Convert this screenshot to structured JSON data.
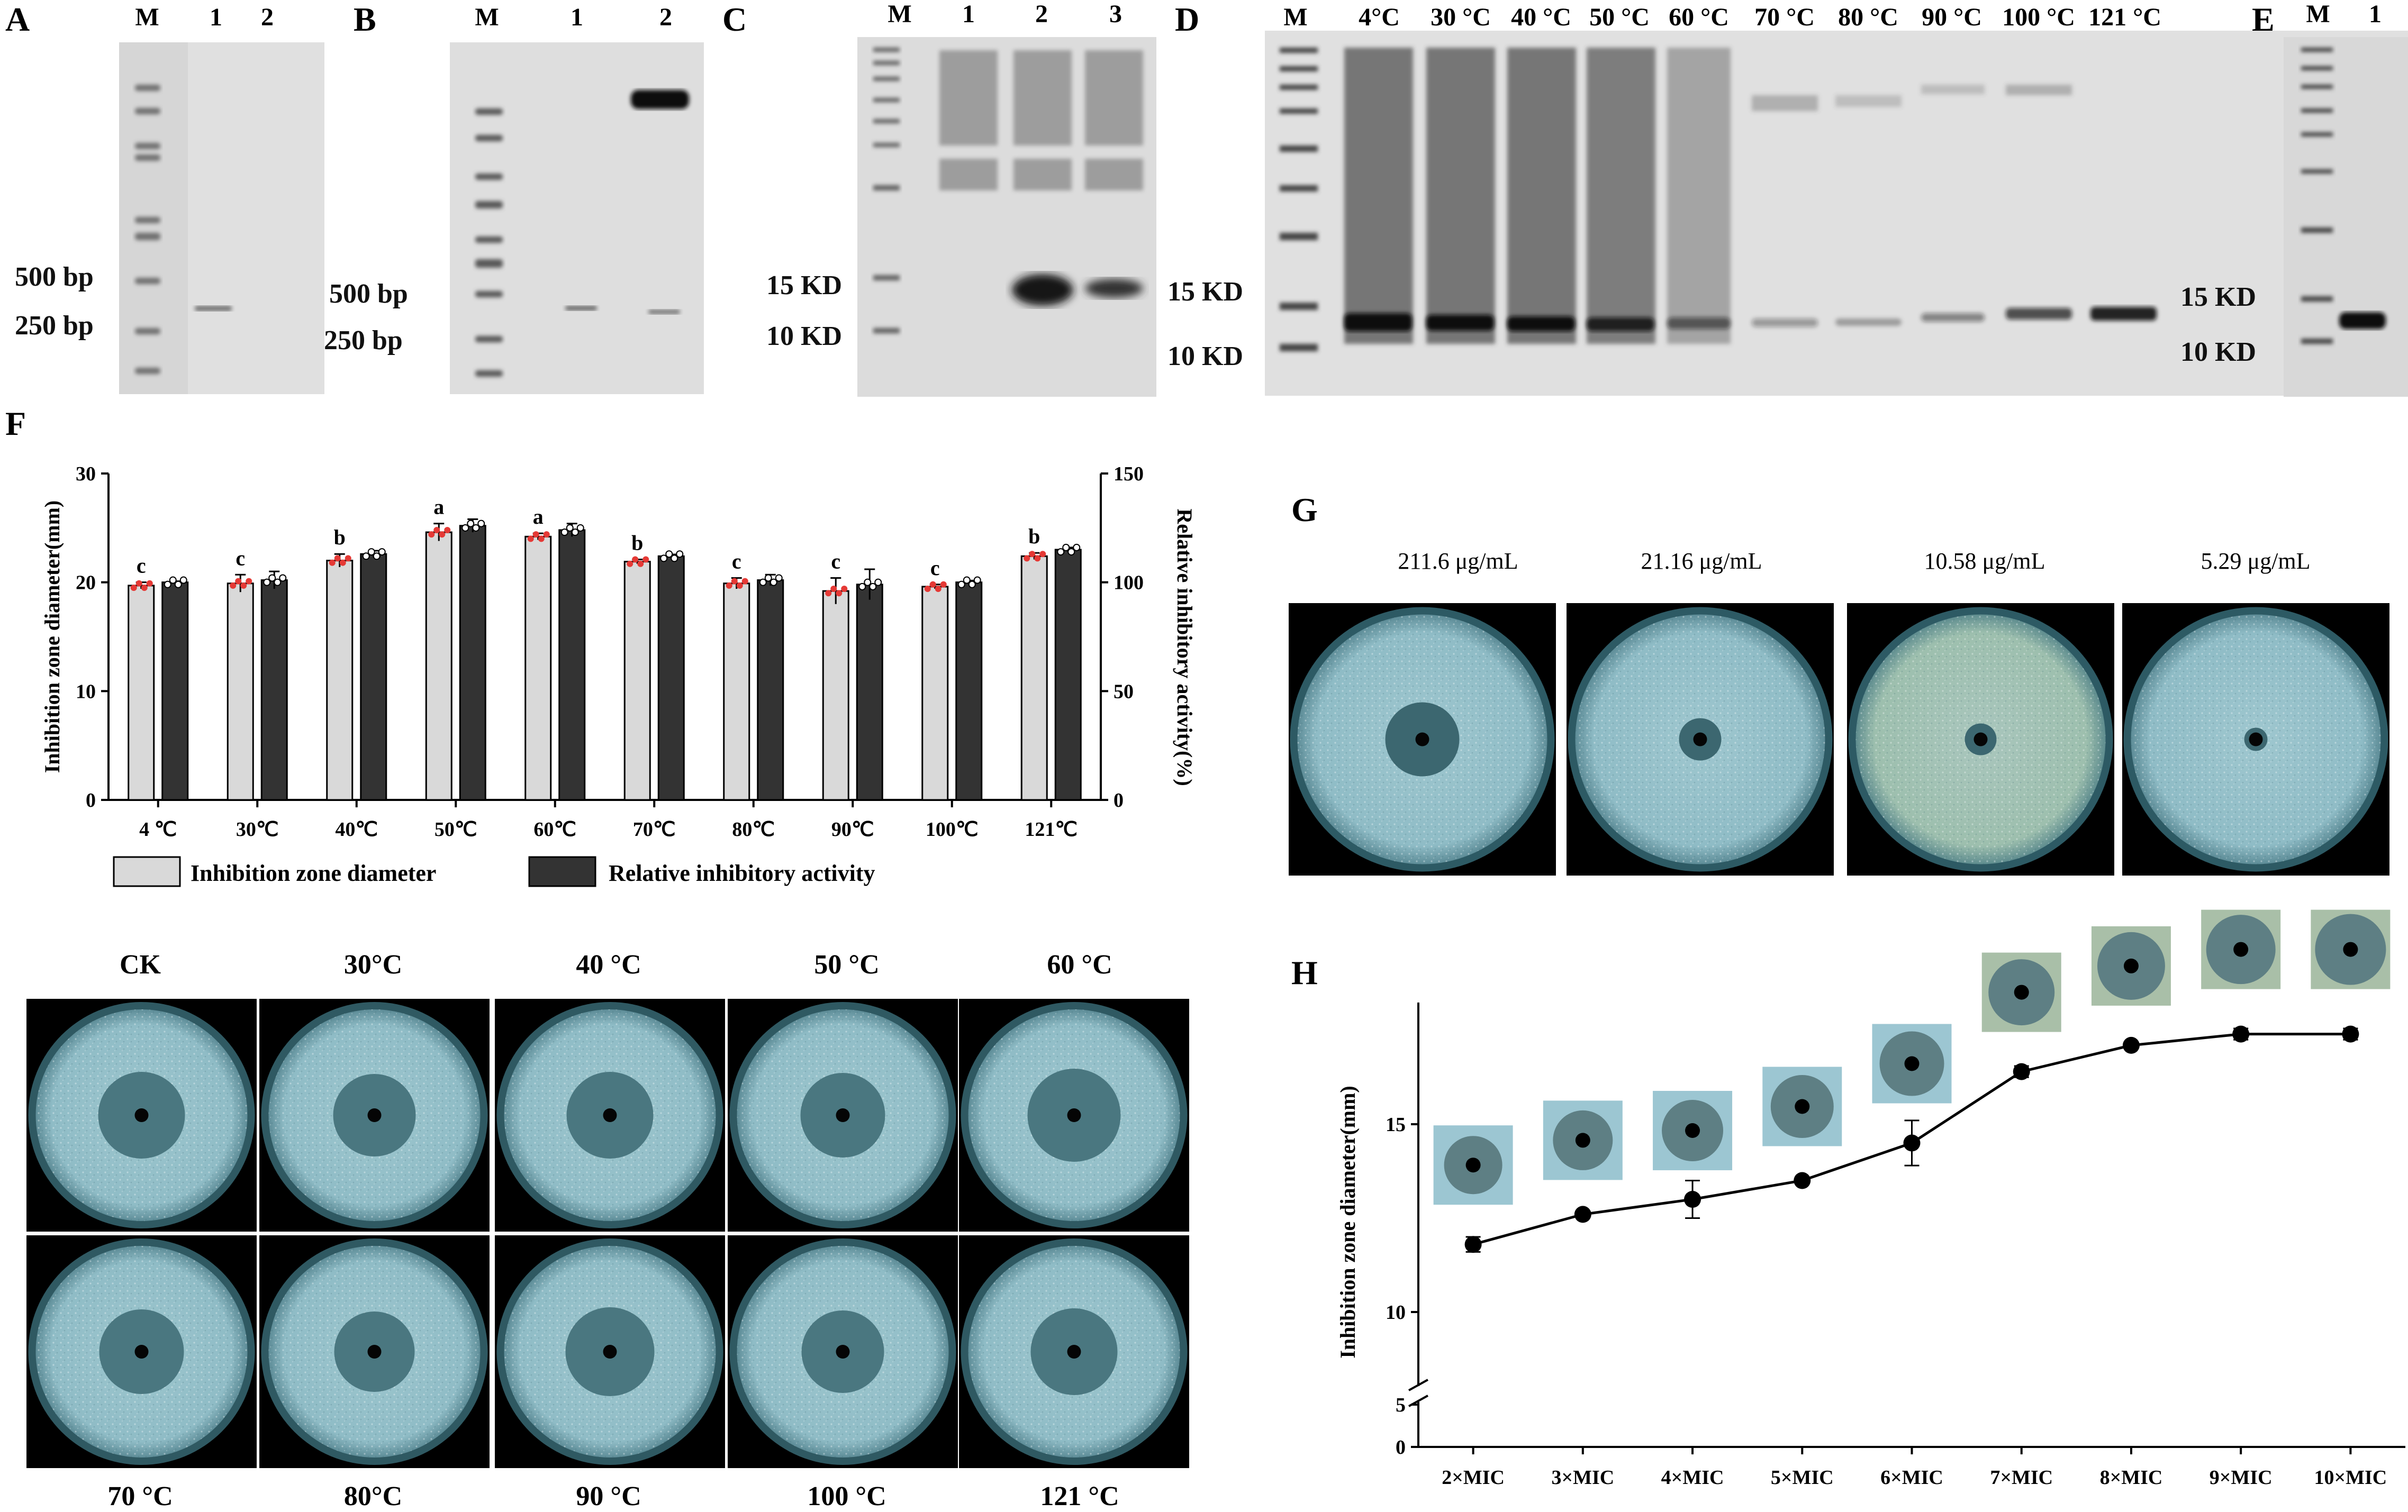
{
  "panels": {
    "A": {
      "label": "A",
      "lanes": [
        "M",
        "1",
        "2"
      ],
      "markers": [
        "500 bp",
        "250 bp"
      ]
    },
    "B": {
      "label": "B",
      "lanes": [
        "M",
        "1",
        "2"
      ],
      "markers": [
        "500 bp",
        "250 bp"
      ]
    },
    "C": {
      "label": "C",
      "lanes": [
        "M",
        "1",
        "2",
        "3"
      ],
      "markers": [
        "15 KD",
        "10 KD"
      ]
    },
    "D": {
      "label": "D",
      "lanes": [
        "M",
        "4°C",
        "30 °C",
        "40 °C",
        "50 °C",
        "60 °C",
        "70 °C",
        "80 °C",
        "90 °C",
        "100 °C",
        "121 °C"
      ],
      "markers": [
        "15 KD",
        "10 KD"
      ]
    },
    "E": {
      "label": "E",
      "lanes": [
        "M",
        "1"
      ],
      "markers": [
        "15 KD",
        "10 KD"
      ]
    },
    "F": {
      "label": "F",
      "dish_labels_top": [
        "CK",
        "30°C",
        "40 °C",
        "50 °C",
        "60 °C"
      ],
      "dish_labels_bottom": [
        "70 °C",
        "80°C",
        "90 °C",
        "100 °C",
        "121 °C"
      ]
    },
    "G": {
      "label": "G",
      "concentrations": [
        "211.6 μg/mL",
        "21.16 μg/mL",
        "10.58 μg/mL",
        "5.29 μg/mL"
      ]
    },
    "H": {
      "label": "H"
    }
  },
  "chart_data": [
    {
      "id": "F",
      "type": "bar",
      "categories": [
        "4 ℃",
        "30℃",
        "40℃",
        "50℃",
        "60℃",
        "70℃",
        "80℃",
        "90℃",
        "100℃",
        "121℃"
      ],
      "ylabel": "Inhibition zone diameter(mm)",
      "y2label": "Relative inhibitory activity(%)",
      "ylim": [
        0,
        30
      ],
      "y2lim": [
        0,
        150
      ],
      "yticks": [
        "0",
        "10",
        "20",
        "30"
      ],
      "y2ticks": [
        "0",
        "50",
        "100",
        "150"
      ],
      "series": [
        {
          "name": "Inhibition zone diameter",
          "axis": "left",
          "color": "#d9d9d9",
          "values": [
            19.7,
            19.9,
            22.0,
            24.6,
            24.2,
            21.9,
            19.9,
            19.2,
            19.6,
            22.4
          ],
          "errors": [
            0.3,
            0.8,
            0.6,
            0.8,
            0.3,
            0.2,
            0.5,
            1.2,
            0.2,
            0.3
          ]
        },
        {
          "name": "Relative inhibitory activity",
          "axis": "right",
          "color": "#333333",
          "values": [
            100,
            101,
            113,
            126,
            124,
            112,
            101,
            99,
            100,
            115
          ],
          "errors": [
            0.5,
            4,
            1.5,
            3,
            3,
            0.8,
            2.5,
            7,
            0.8,
            1
          ]
        }
      ],
      "significance": [
        "c",
        "c",
        "b",
        "a",
        "a",
        "b",
        "c",
        "c",
        "c",
        "b"
      ],
      "legend": "bottom"
    },
    {
      "id": "H",
      "type": "line",
      "categories": [
        "2×MIC",
        "3×MIC",
        "4×MIC",
        "5×MIC",
        "6×MIC",
        "7×MIC",
        "8×MIC",
        "9×MIC",
        "10×MIC"
      ],
      "values": [
        11.8,
        12.6,
        13.0,
        13.5,
        14.5,
        16.4,
        17.1,
        17.4,
        17.4
      ],
      "errors": [
        0.2,
        0.05,
        0.5,
        0.05,
        0.6,
        0.15,
        0.05,
        0.15,
        0.15
      ],
      "ylabel": "Inhibition zone diameter(mm)",
      "yticks": [
        "0",
        "5",
        "10",
        "15"
      ],
      "ylim": [
        0,
        18
      ],
      "axis_break": [
        5,
        10
      ]
    }
  ]
}
